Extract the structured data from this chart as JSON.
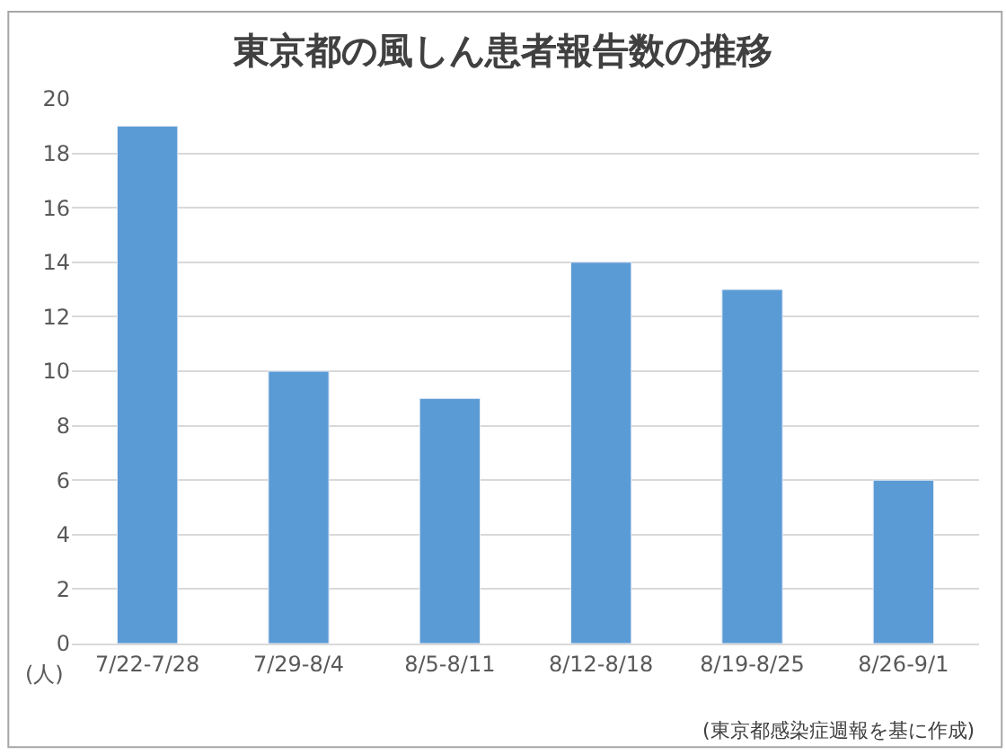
{
  "chart_data": {
    "type": "bar",
    "title": "東京都の風しん患者報告数の推移",
    "ylabel": "(人)",
    "categories": [
      "7/22-7/28",
      "7/29-8/4",
      "8/5-8/11",
      "8/12-8/18",
      "8/19-8/25",
      "8/26-9/1"
    ],
    "values": [
      19,
      10,
      9,
      14,
      13,
      6
    ],
    "color": "#5b9bd5",
    "ylim": [
      0,
      20
    ],
    "yticks": [
      0,
      2,
      4,
      6,
      8,
      10,
      12,
      14,
      16,
      18,
      20
    ],
    "grid": "y",
    "legend": false,
    "annotations": [
      "(東京都感染症週報を基に作成)"
    ]
  }
}
